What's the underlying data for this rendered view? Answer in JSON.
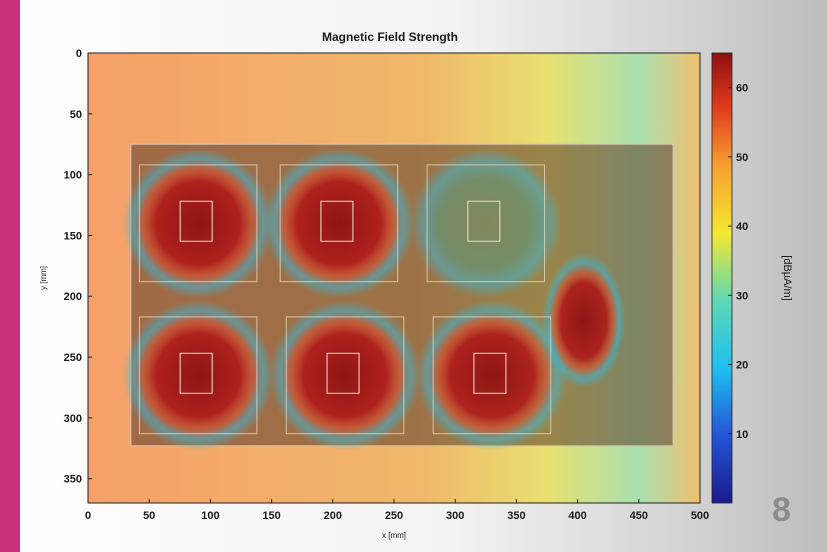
{
  "page": {
    "page_number": "8",
    "accent_color": "#c8307a"
  },
  "chart_data": {
    "type": "heatmap",
    "title": "Magnetic Field Strength",
    "xlabel": "x [mm]",
    "ylabel": "y [mm]",
    "xlim": [
      0,
      500
    ],
    "ylim": [
      370,
      0
    ],
    "x_ticks": [
      0,
      50,
      100,
      150,
      200,
      250,
      300,
      350,
      400,
      450,
      500
    ],
    "y_ticks": [
      0,
      50,
      100,
      150,
      200,
      250,
      300,
      350
    ],
    "colorbar": {
      "label": "[dBµA/m]",
      "range": [
        0,
        65
      ],
      "ticks": [
        10,
        20,
        30,
        40,
        50,
        60
      ],
      "colormap": [
        "#1a1a8c",
        "#2454d6",
        "#1ec0f0",
        "#5ed8b4",
        "#b8e050",
        "#f4e830",
        "#f6a030",
        "#e03a1e",
        "#8c1010"
      ]
    },
    "board": {
      "x_range": [
        35,
        478
      ],
      "y_range": [
        75,
        323
      ]
    },
    "coil_hotspots": [
      {
        "x": 90,
        "y": 140,
        "level_dBuA_m": 62
      },
      {
        "x": 205,
        "y": 140,
        "level_dBuA_m": 58
      },
      {
        "x": 325,
        "y": 140,
        "level_dBuA_m": 30
      },
      {
        "x": 90,
        "y": 265,
        "level_dBuA_m": 62
      },
      {
        "x": 210,
        "y": 265,
        "level_dBuA_m": 63
      },
      {
        "x": 330,
        "y": 265,
        "level_dBuA_m": 63
      },
      {
        "x": 405,
        "y": 220,
        "level_dBuA_m": 58
      }
    ],
    "background_level_dBuA_m": 45,
    "grid": false
  }
}
